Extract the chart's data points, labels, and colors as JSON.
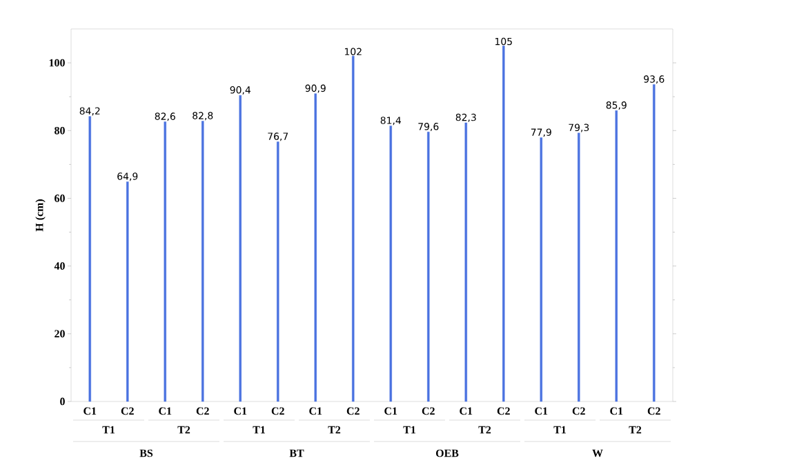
{
  "chart_data": {
    "type": "bar",
    "ylabel": "H (cm)",
    "categories": [
      "C1",
      "C2",
      "C1",
      "C2",
      "C1",
      "C2",
      "C1",
      "C2",
      "C1",
      "C2",
      "C1",
      "C2",
      "C1",
      "C2",
      "C1",
      "C2"
    ],
    "values": [
      84.2,
      64.9,
      82.6,
      82.8,
      90.4,
      76.7,
      90.9,
      102,
      81.4,
      79.6,
      82.3,
      105,
      77.9,
      79.3,
      85.9,
      93.6
    ],
    "value_labels": [
      "84,2",
      "64,9",
      "82,6",
      "82,8",
      "90,4",
      "76,7",
      "90,9",
      "102",
      "81,4",
      "79,6",
      "82,3",
      "105",
      "77,9",
      "79,3",
      "85,9",
      "93,6"
    ],
    "color": "#4a72e0",
    "ylim": [
      0,
      110
    ],
    "yticks": [
      0,
      20,
      40,
      60,
      80,
      100
    ],
    "grid": false,
    "annotations": [
      "T1",
      "T2",
      "T1",
      "T2",
      "T1",
      "T2",
      "T1",
      "T2",
      "BS",
      "BT",
      "OEB",
      "W"
    ]
  }
}
